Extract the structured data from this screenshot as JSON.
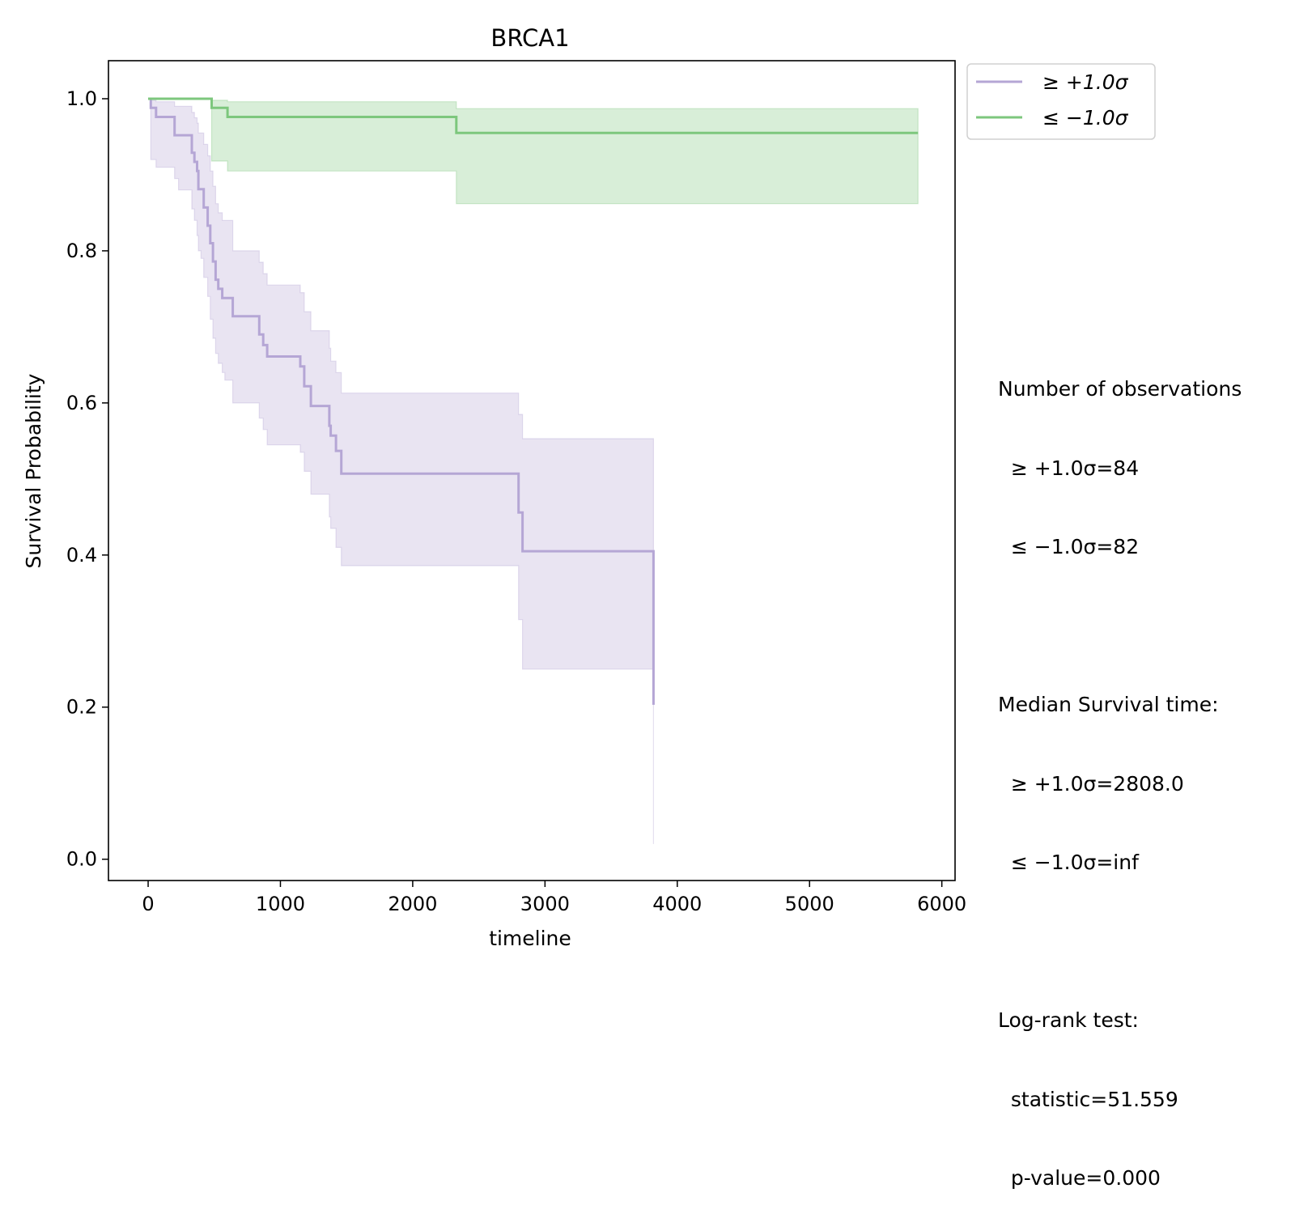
{
  "chart_data": {
    "type": "line",
    "title": "BRCA1",
    "xlabel": "timeline",
    "ylabel": "Survival Probability",
    "xlim": [
      -300,
      6100
    ],
    "ylim": [
      -0.028,
      1.05
    ],
    "xticks": [
      0,
      1000,
      2000,
      3000,
      4000,
      5000,
      6000
    ],
    "xtick_labels": [
      "0",
      "1000",
      "2000",
      "3000",
      "4000",
      "5000",
      "6000"
    ],
    "yticks": [
      0.0,
      0.2,
      0.4,
      0.6,
      0.8,
      1.0
    ],
    "ytick_labels": [
      "0.0",
      "0.2",
      "0.4",
      "0.6",
      "0.8",
      "1.0"
    ],
    "grid": false,
    "legend_position": "outside top-right",
    "series": [
      {
        "name": "≥ +1.0σ",
        "color": "#b5a6d5",
        "step": "post",
        "x": [
          0,
          20,
          60,
          200,
          230,
          330,
          350,
          370,
          380,
          400,
          420,
          450,
          470,
          490,
          510,
          530,
          560,
          580,
          640,
          840,
          870,
          900,
          1100,
          1150,
          1180,
          1230,
          1330,
          1370,
          1380,
          1420,
          1460,
          2800,
          2830,
          3820
        ],
        "y": [
          1.0,
          0.988,
          0.976,
          0.952,
          0.952,
          0.929,
          0.917,
          0.905,
          0.881,
          0.881,
          0.857,
          0.833,
          0.81,
          0.786,
          0.762,
          0.75,
          0.738,
          0.738,
          0.714,
          0.69,
          0.676,
          0.661,
          0.661,
          0.648,
          0.622,
          0.596,
          0.596,
          0.57,
          0.557,
          0.537,
          0.507,
          0.456,
          0.405,
          0.203
        ],
        "ci_upper": [
          1.0,
          0.998,
          0.996,
          0.99,
          0.99,
          0.982,
          0.975,
          0.968,
          0.955,
          0.955,
          0.94,
          0.925,
          0.905,
          0.885,
          0.862,
          0.85,
          0.84,
          0.84,
          0.8,
          0.785,
          0.77,
          0.755,
          0.755,
          0.745,
          0.72,
          0.695,
          0.695,
          0.672,
          0.655,
          0.64,
          0.613,
          0.585,
          0.553,
          0.52
        ],
        "ci_lower": [
          1.0,
          0.92,
          0.91,
          0.895,
          0.88,
          0.855,
          0.84,
          0.82,
          0.8,
          0.79,
          0.765,
          0.74,
          0.71,
          0.685,
          0.665,
          0.652,
          0.64,
          0.63,
          0.6,
          0.58,
          0.565,
          0.545,
          0.545,
          0.535,
          0.51,
          0.48,
          0.48,
          0.45,
          0.435,
          0.41,
          0.386,
          0.315,
          0.25,
          0.02
        ]
      },
      {
        "name": "≤ −1.0σ",
        "color": "#7dc77d",
        "step": "post",
        "x": [
          0,
          480,
          600,
          2330,
          5820
        ],
        "y": [
          1.0,
          0.988,
          0.976,
          0.955,
          0.955
        ],
        "ci_upper": [
          1.0,
          0.998,
          0.996,
          0.987,
          0.987
        ],
        "ci_lower": [
          1.0,
          0.918,
          0.905,
          0.862,
          0.862
        ]
      }
    ]
  },
  "stats_text": {
    "obs_heading": "Number of observations",
    "obs_high": "  ≥ +1.0σ=84",
    "obs_low": "  ≤ −1.0σ=82",
    "median_heading": "Median Survival time:",
    "median_high": "  ≥ +1.0σ=2808.0",
    "median_low": "  ≤ −1.0σ=inf",
    "logrank_heading": "Log-rank test:",
    "logrank_statistic": "  statistic=51.559",
    "logrank_pvalue": "  p-value=0.000"
  }
}
